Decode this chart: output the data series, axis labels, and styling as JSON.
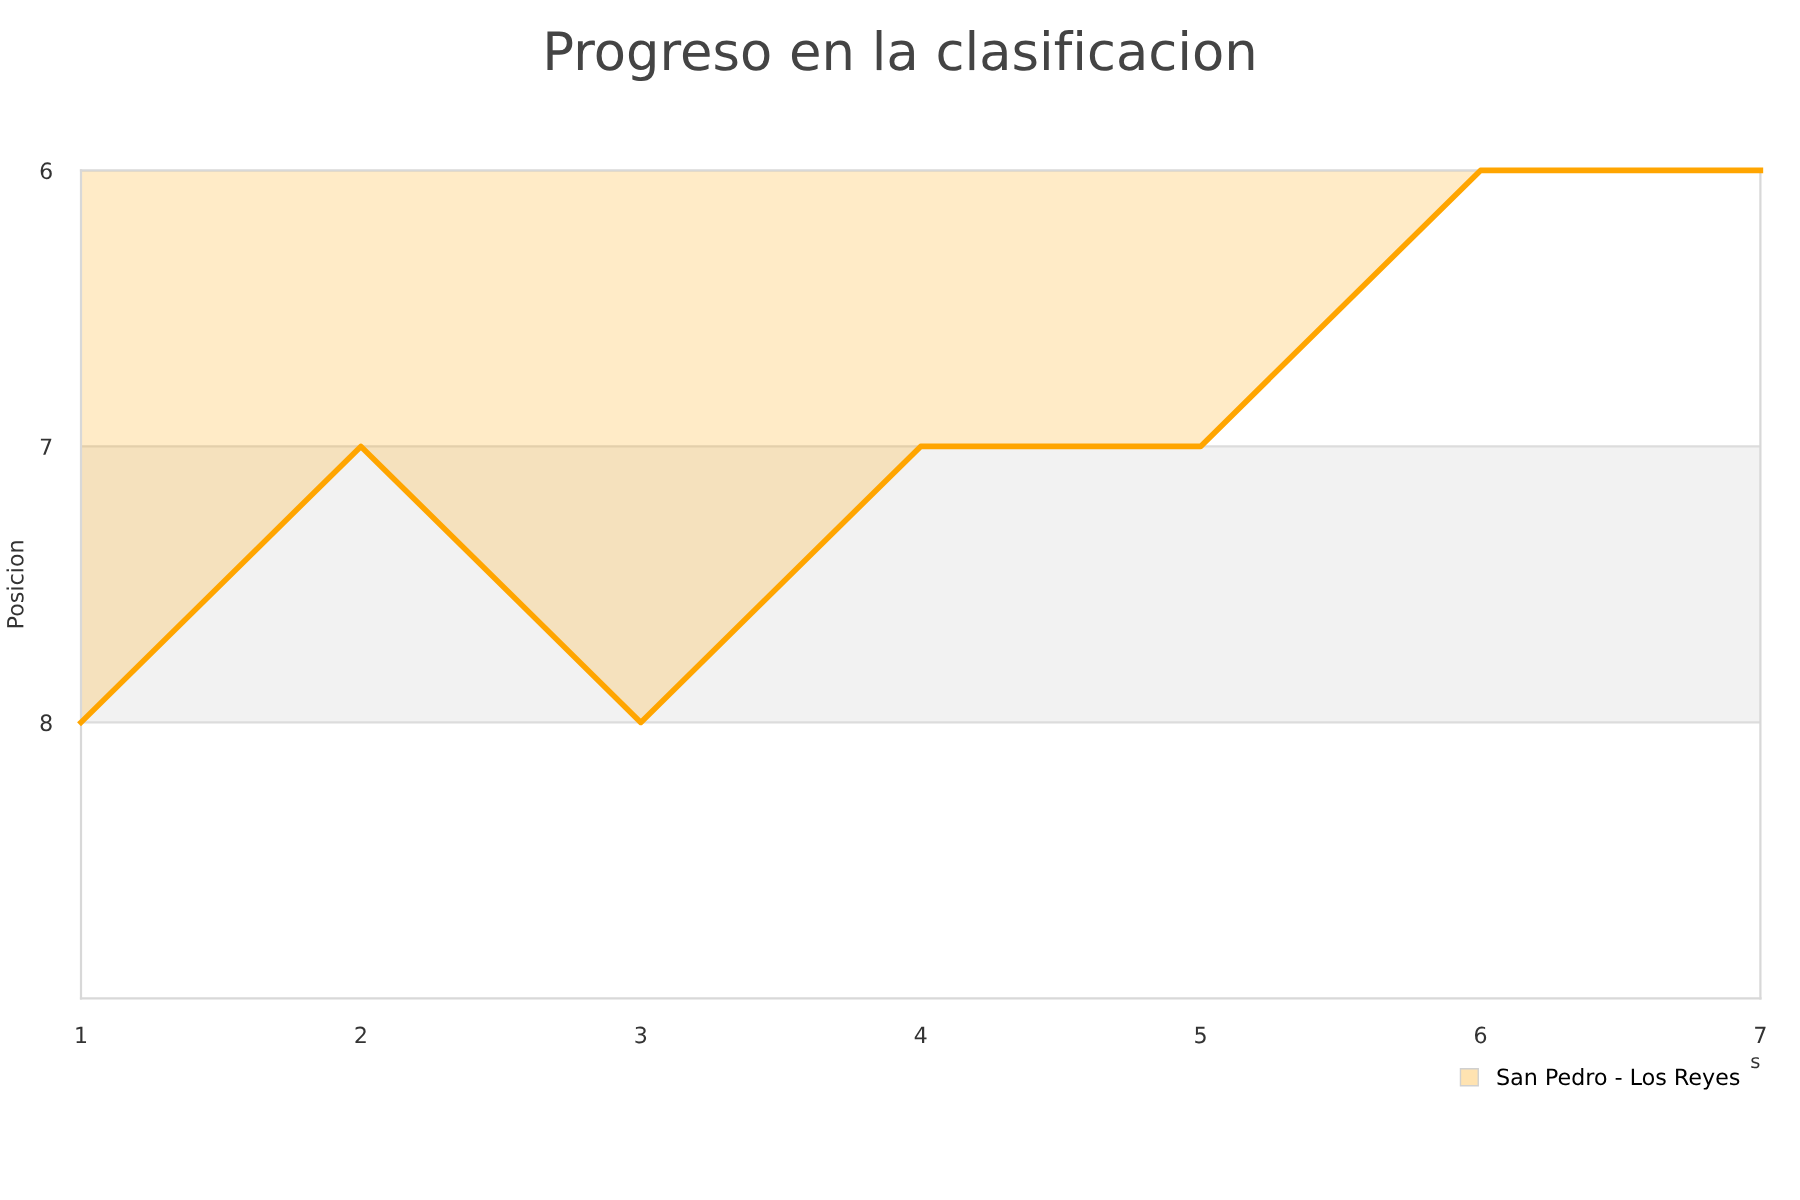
{
  "chart_data": {
    "type": "area",
    "title": "Progreso en la clasificacion",
    "ylabel": "Posicion",
    "xlabel": "s",
    "x": [
      1,
      2,
      3,
      4,
      5,
      6,
      7
    ],
    "series": [
      {
        "name": "San Pedro - Los Reyes",
        "color": "#ffa500",
        "values": [
          8,
          7,
          8,
          7,
          7,
          6,
          6
        ]
      }
    ],
    "xlim": [
      1,
      7
    ],
    "xticks": [
      1,
      2,
      3,
      4,
      5,
      6,
      7
    ],
    "ylim": [
      9,
      6
    ],
    "yticks": [
      6,
      7,
      8
    ],
    "bands": [
      {
        "axis": "y",
        "from": 7,
        "to": 8,
        "color": "#f2f2f2"
      }
    ],
    "grid": "y",
    "legend": "bottom right",
    "marker": "none",
    "line_style": "solid"
  }
}
